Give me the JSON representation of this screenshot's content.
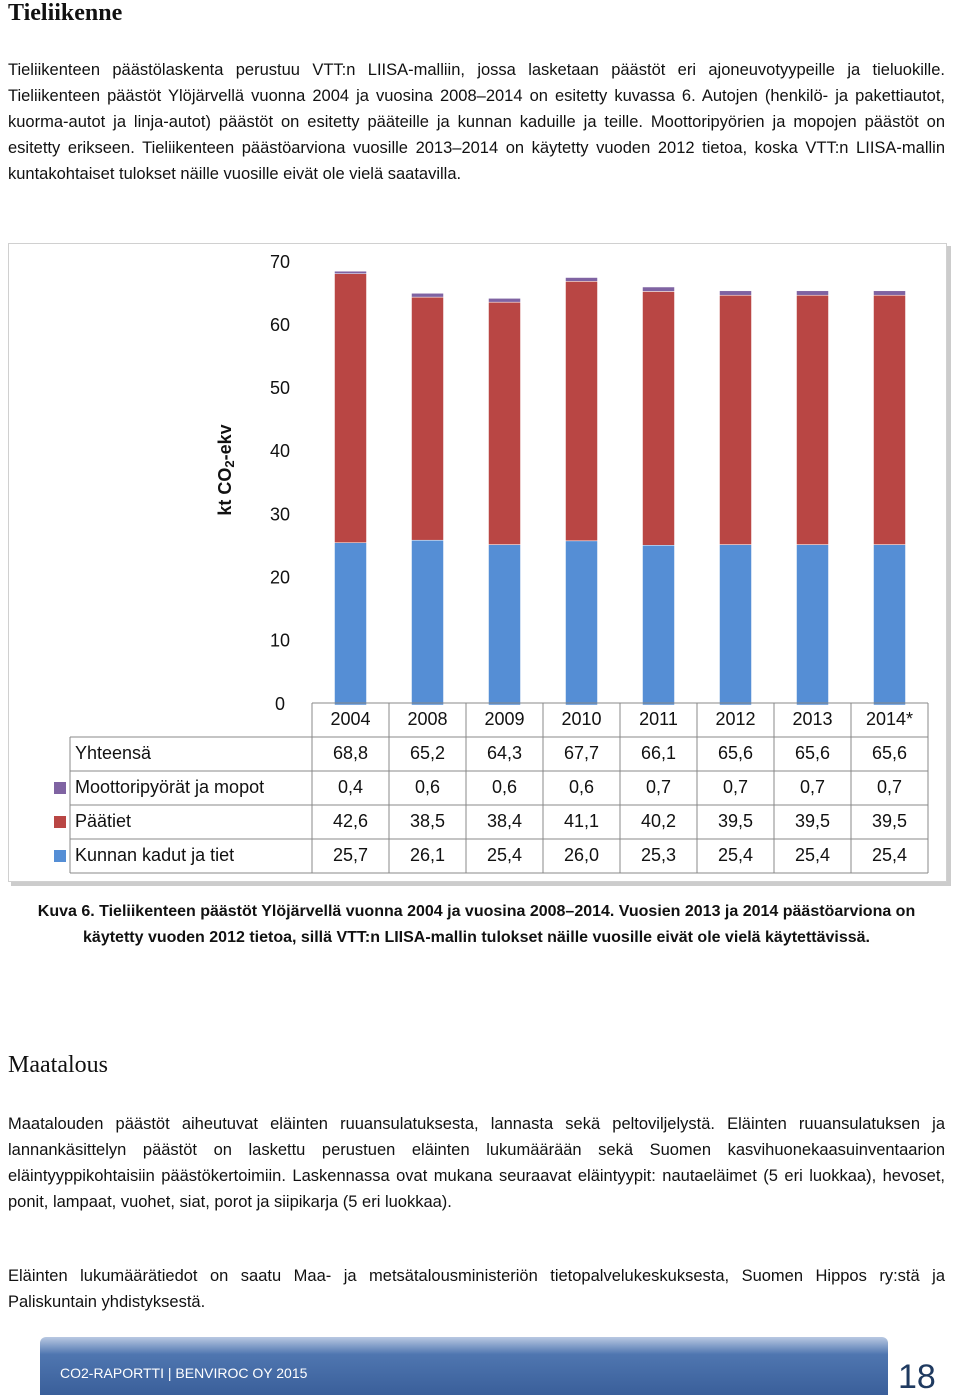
{
  "heading1": "Tieliikenne",
  "paragraph1": "Tieliikenteen päästölaskenta perustuu VTT:n LIISA-malliin, jossa lasketaan päästöt eri ajoneuvotyypeille ja tieluokille. Tieliikenteen päästöt Ylöjärvellä vuonna 2004 ja vuosina 2008–2014 on esitetty kuvassa 6. Autojen (henkilö- ja pakettiautot, kuorma-autot ja linja-autot) päästöt on esitetty pääteille ja kunnan kaduille ja teille. Moottoripyörien ja mopojen päästöt on esitetty erikseen. Tieliikenteen päästöarviona vuosille 2013–2014 on käytetty vuoden 2012 tietoa, koska VTT:n LIISA-mallin kuntakohtaiset tulokset näille vuosille eivät ole vielä saatavilla.",
  "chart_data": {
    "type": "stacked-bar",
    "y_label": {
      "text": "kt CO",
      "sub": "2",
      "after": "-ekv"
    },
    "categories": [
      "2004",
      "2008",
      "2009",
      "2010",
      "2011",
      "2012",
      "2013",
      "2014*"
    ],
    "ylim": [
      0,
      70
    ],
    "yticks": [
      0,
      10,
      20,
      30,
      40,
      50,
      60,
      70
    ],
    "totals": {
      "name": "Yhteensä",
      "values": [
        68.8,
        65.2,
        64.3,
        67.7,
        66.1,
        65.6,
        65.6,
        65.6
      ],
      "value_labels": [
        "68,8",
        "65,2",
        "64,3",
        "67,7",
        "66,1",
        "65,6",
        "65,6",
        "65,6"
      ]
    },
    "series": [
      {
        "name": "Moottoripyörät ja mopot",
        "color": "#7f63a2",
        "values": [
          0.4,
          0.6,
          0.6,
          0.6,
          0.7,
          0.7,
          0.7,
          0.7
        ],
        "value_labels": [
          "0,4",
          "0,6",
          "0,6",
          "0,6",
          "0,7",
          "0,7",
          "0,7",
          "0,7"
        ]
      },
      {
        "name": "Päätiet",
        "color": "#b94644",
        "values": [
          42.6,
          38.5,
          38.4,
          41.1,
          40.2,
          39.5,
          39.5,
          39.5
        ],
        "value_labels": [
          "42,6",
          "38,5",
          "38,4",
          "41,1",
          "40,2",
          "39,5",
          "39,5",
          "39,5"
        ]
      },
      {
        "name": "Kunnan kadut ja tiet",
        "color": "#558ed5",
        "values": [
          25.7,
          26.1,
          25.4,
          26.0,
          25.3,
          25.4,
          25.4,
          25.4
        ],
        "value_labels": [
          "25,7",
          "26,1",
          "25,4",
          "26,0",
          "25,3",
          "25,4",
          "25,4",
          "25,4"
        ]
      }
    ]
  },
  "caption": "Kuva 6. Tieliikenteen päästöt Ylöjärvellä vuonna 2004 ja vuosina 2008–2014. Vuosien 2013 ja 2014 päästöarviona on käytetty vuoden 2012 tietoa, sillä VTT:n LIISA-mallin tulokset näille vuosille eivät ole vielä käytettävissä.",
  "heading2": "Maatalous",
  "paragraph2": "Maatalouden päästöt aiheutuvat eläinten ruuansulatuksesta, lannasta sekä peltoviljelystä. Eläinten ruuansulatuksen ja lannankäsittelyn päästöt on laskettu perustuen eläinten lukumäärään sekä Suomen kasvihuonekaasuinventaarion eläintyyppikohtaisiin päästökertoimiin. Laskennassa ovat mukana seuraavat eläintyypit: nautaeläimet (5 eri luokkaa), hevoset, ponit, lampaat, vuohet, siat, porot ja siipikarja (5 eri luokkaa).",
  "paragraph3": "Eläinten lukumäärätiedot on saatu Maa- ja metsätalousministeriön tietopalvelukeskuksesta, Suomen Hippos ry:stä ja Paliskuntain yhdistyksestä.",
  "footer": "CO2-RAPORTTI | BENVIROC OY 2015",
  "page_number": "18"
}
